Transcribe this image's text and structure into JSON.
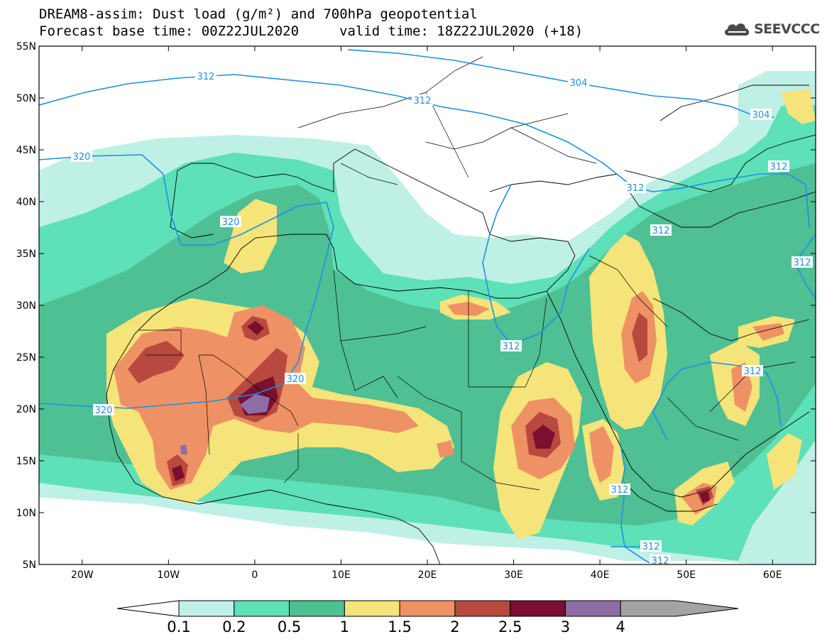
{
  "header": {
    "line1": "DREAM8-assim: Dust load (g/m²) and 700hPa geopotential",
    "line2_left": "Forecast base time: 00Z22JUL2020",
    "line2_right": "valid time: 18Z22JUL2020 (+18)",
    "logo_text": "SEEVCCC"
  },
  "map": {
    "lat_labels": [
      "55N",
      "50N",
      "45N",
      "40N",
      "35N",
      "30N",
      "25N",
      "20N",
      "15N",
      "10N",
      "5N"
    ],
    "lat_values": [
      55,
      50,
      45,
      40,
      35,
      30,
      25,
      20,
      15,
      10,
      5
    ],
    "lon_labels": [
      "20W",
      "10W",
      "0",
      "10E",
      "20E",
      "30E",
      "40E",
      "50E",
      "60E"
    ],
    "lon_values": [
      -20,
      -10,
      0,
      10,
      20,
      30,
      40,
      50,
      60
    ],
    "lon_range": [
      -25,
      65
    ],
    "lat_range": [
      5,
      55
    ],
    "contour_labels": [
      "312",
      "312",
      "304",
      "304",
      "320",
      "320",
      "320",
      "320",
      "312",
      "312",
      "312",
      "312",
      "312",
      "312",
      "312",
      "312",
      "312"
    ]
  },
  "colorbar": {
    "labels": [
      "0.1",
      "0.2",
      "0.5",
      "1",
      "1.5",
      "2",
      "2.5",
      "3",
      "4"
    ],
    "colors": [
      "#bff0e6",
      "#5ee0b8",
      "#4fbf94",
      "#f5e479",
      "#ee9165",
      "#b8493f",
      "#7a0f2f",
      "#8e6ca6",
      "#a3a3a3"
    ],
    "extend_low_color": "#ffffff"
  },
  "colors": {
    "contour_line": "#1d8fe8",
    "land_white": "#ffffff"
  }
}
